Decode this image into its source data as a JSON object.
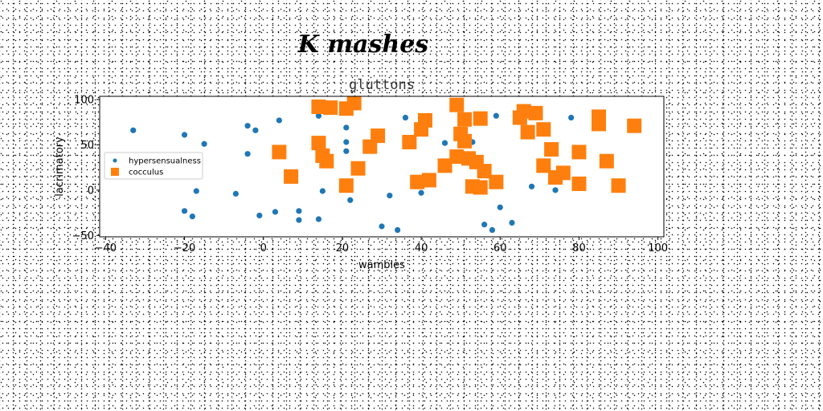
{
  "chart_data": {
    "type": "scatter",
    "suptitle": "K mashes",
    "title": "gluttons",
    "xlabel": "wambles",
    "ylabel": "lacrimatory",
    "xlim": [
      -41.5,
      101.5
    ],
    "ylim": [
      -51.5,
      103.5
    ],
    "xticks": [
      -40,
      -20,
      0,
      20,
      40,
      60,
      80,
      100
    ],
    "yticks": [
      -50,
      0,
      50,
      100
    ],
    "grid": false,
    "legend_position": "center-left",
    "series": [
      {
        "name": "hypersensualness",
        "color": "#1f77b4",
        "marker": "circle",
        "points": [
          [
            -33,
            66
          ],
          [
            -20,
            61
          ],
          [
            -20,
            -23
          ],
          [
            -18,
            -29
          ],
          [
            -17,
            -1
          ],
          [
            -15,
            51
          ],
          [
            -7,
            -4
          ],
          [
            -4,
            40
          ],
          [
            -4,
            71
          ],
          [
            -2,
            66
          ],
          [
            -1,
            -28
          ],
          [
            3,
            -24
          ],
          [
            4,
            77
          ],
          [
            9,
            -23
          ],
          [
            9,
            -33
          ],
          [
            14,
            -32
          ],
          [
            14,
            82
          ],
          [
            15,
            -1
          ],
          [
            21,
            69
          ],
          [
            21,
            53
          ],
          [
            21,
            43
          ],
          [
            22,
            -11
          ],
          [
            30,
            -40
          ],
          [
            32,
            -6
          ],
          [
            34,
            -44
          ],
          [
            36,
            80
          ],
          [
            40,
            -3
          ],
          [
            46,
            52
          ],
          [
            53,
            53
          ],
          [
            56,
            -38
          ],
          [
            58,
            -44
          ],
          [
            59,
            82
          ],
          [
            60,
            -19
          ],
          [
            63,
            -36
          ],
          [
            68,
            4
          ],
          [
            74,
            0
          ],
          [
            78,
            80
          ]
        ]
      },
      {
        "name": "cocculus",
        "color": "#ff7f0e",
        "marker": "square",
        "points": [
          [
            4,
            42
          ],
          [
            7,
            15
          ],
          [
            14,
            92
          ],
          [
            14,
            52
          ],
          [
            15,
            38
          ],
          [
            16,
            32
          ],
          [
            17,
            91
          ],
          [
            21,
            90
          ],
          [
            21,
            5
          ],
          [
            23,
            96
          ],
          [
            24,
            24
          ],
          [
            27,
            48
          ],
          [
            29,
            60
          ],
          [
            37,
            53
          ],
          [
            39,
            9
          ],
          [
            40,
            67
          ],
          [
            41,
            77
          ],
          [
            42,
            11
          ],
          [
            46,
            27
          ],
          [
            49,
            94
          ],
          [
            49,
            37
          ],
          [
            50,
            62
          ],
          [
            51,
            78
          ],
          [
            51,
            54
          ],
          [
            52,
            35
          ],
          [
            53,
            4
          ],
          [
            54,
            31
          ],
          [
            55,
            79
          ],
          [
            55,
            3
          ],
          [
            56,
            21
          ],
          [
            59,
            9
          ],
          [
            65,
            80
          ],
          [
            66,
            87
          ],
          [
            67,
            64
          ],
          [
            69,
            85
          ],
          [
            71,
            27
          ],
          [
            71,
            67
          ],
          [
            73,
            45
          ],
          [
            74,
            14
          ],
          [
            76,
            19
          ],
          [
            80,
            42
          ],
          [
            80,
            7
          ],
          [
            85,
            81
          ],
          [
            85,
            73
          ],
          [
            87,
            32
          ],
          [
            90,
            5
          ],
          [
            94,
            71
          ]
        ]
      }
    ]
  }
}
